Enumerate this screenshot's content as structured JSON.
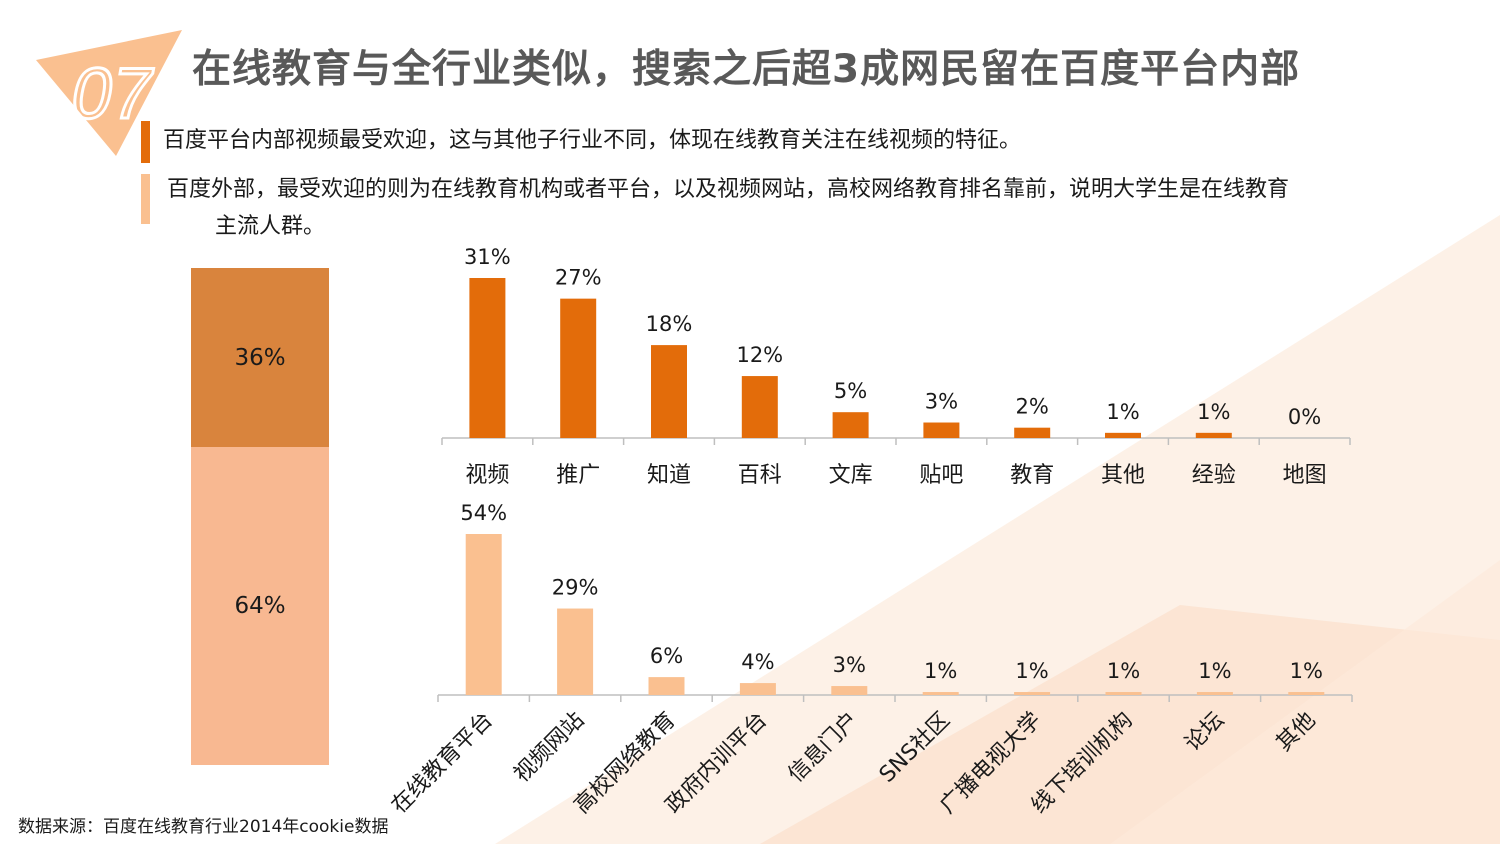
{
  "slide": {
    "number": "07",
    "title": "在线教育与全行业类似，搜索之后超3成网民留在百度平台内部",
    "bullets": [
      "百度平台内部视频最受欢迎，这与其他子行业不同，体现在线教育关注在线视频的特征。",
      "百度外部，最受欢迎的则为在线教育机构或者平台，以及视频网站，高校网络教育排名靠前，说明大学生是在线教育",
      "主流人群。"
    ],
    "source": "数据来源：百度在线教育行业2014年cookie数据"
  },
  "colors": {
    "dark_orange": "#e36c0a",
    "light_orange": "#fac090",
    "stack_top": "#d9843d",
    "stack_bottom": "#f8b891",
    "title_gray": "#595959"
  },
  "chart_data": [
    {
      "type": "bar",
      "stacked": true,
      "categories": [
        ""
      ],
      "series": [
        {
          "values": [
            36
          ],
          "label": "36%"
        },
        {
          "values": [
            64
          ],
          "label": "64%"
        }
      ],
      "ylim": [
        0,
        100
      ]
    },
    {
      "type": "bar",
      "categories": [
        "视频",
        "推广",
        "知道",
        "百科",
        "文库",
        "贴吧",
        "教育",
        "其他",
        "经验",
        "地图"
      ],
      "values": [
        31,
        27,
        18,
        12,
        5,
        3,
        2,
        1,
        1,
        0
      ],
      "labels": [
        "31%",
        "27%",
        "18%",
        "12%",
        "5%",
        "3%",
        "2%",
        "1%",
        "1%",
        "0%"
      ],
      "ylim": [
        0,
        31
      ]
    },
    {
      "type": "bar",
      "categories": [
        "在线教育平台",
        "视频网站",
        "高校网络教育",
        "政府内训平台",
        "信息门户",
        "SNS社区",
        "广播电视大学",
        "线下培训机构",
        "论坛",
        "其他"
      ],
      "values": [
        54,
        29,
        6,
        4,
        3,
        1,
        1,
        1,
        1,
        1
      ],
      "labels": [
        "54%",
        "29%",
        "6%",
        "4%",
        "3%",
        "1%",
        "1%",
        "1%",
        "1%",
        "1%"
      ],
      "ylim": [
        0,
        54
      ]
    }
  ]
}
